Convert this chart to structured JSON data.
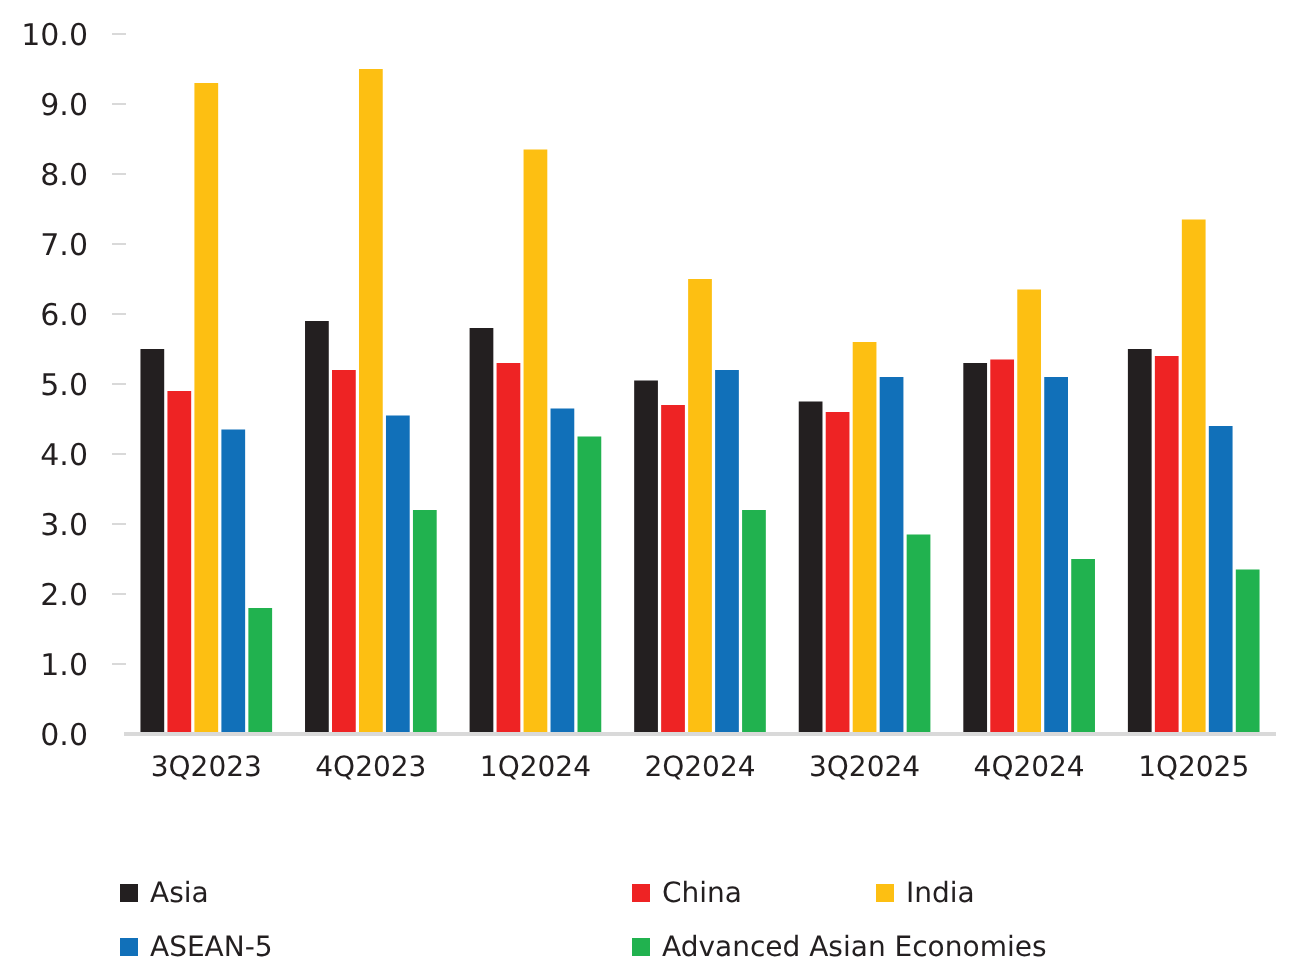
{
  "chart_data": {
    "type": "bar",
    "categories": [
      "3Q2023",
      "4Q2023",
      "1Q2024",
      "2Q2024",
      "3Q2024",
      "4Q2024",
      "1Q2025"
    ],
    "series": [
      {
        "name": "Asia",
        "color": "#231f20",
        "values": [
          5.5,
          5.9,
          5.8,
          5.05,
          4.75,
          5.3,
          5.5
        ]
      },
      {
        "name": "China",
        "color": "#ee2324",
        "values": [
          4.9,
          5.2,
          5.3,
          4.7,
          4.6,
          5.35,
          5.4
        ]
      },
      {
        "name": "India",
        "color": "#fdbf12",
        "values": [
          9.3,
          9.5,
          8.35,
          6.5,
          5.6,
          6.35,
          7.35
        ]
      },
      {
        "name": "ASEAN-5",
        "color": "#1170b9",
        "values": [
          4.35,
          4.55,
          4.65,
          5.2,
          5.1,
          5.1,
          4.4
        ]
      },
      {
        "name": "Advanced Asian Economies",
        "color": "#21b24f",
        "values": [
          1.8,
          3.2,
          4.25,
          3.2,
          2.85,
          2.5,
          2.35
        ]
      }
    ],
    "ylim": [
      0,
      10
    ],
    "yticks": [
      {
        "value": 0,
        "label": "0.0"
      },
      {
        "value": 1,
        "label": "1.0"
      },
      {
        "value": 2,
        "label": "2.0"
      },
      {
        "value": 3,
        "label": "3.0"
      },
      {
        "value": 4,
        "label": "4.0"
      },
      {
        "value": 5,
        "label": "5.0"
      },
      {
        "value": 6,
        "label": "6.0"
      },
      {
        "value": 7,
        "label": "7.0"
      },
      {
        "value": 8,
        "label": "8.0"
      },
      {
        "value": 9,
        "label": "9.0"
      },
      {
        "value": 10,
        "label": "10.0"
      }
    ],
    "legend": "bottom"
  }
}
